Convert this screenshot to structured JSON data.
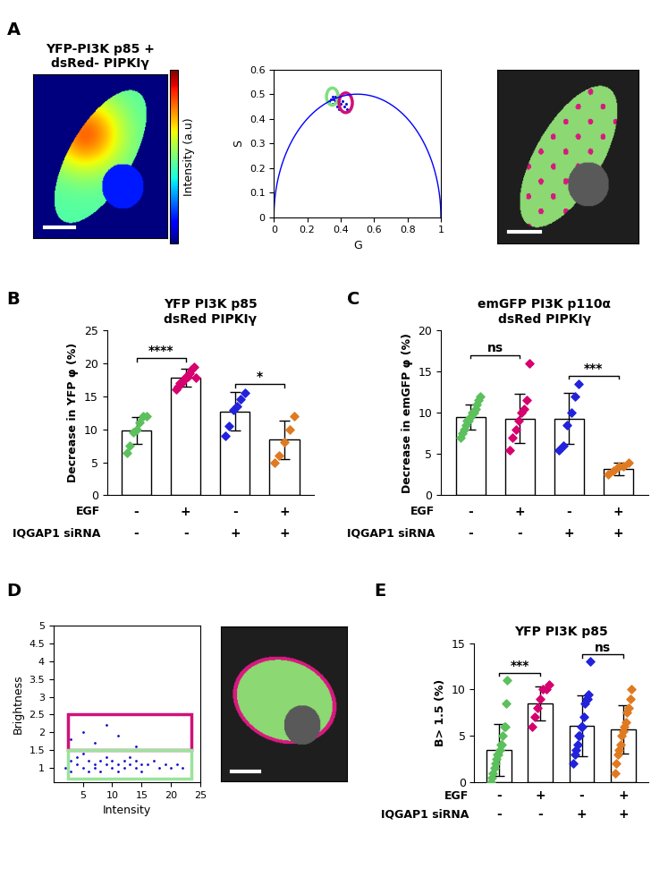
{
  "panel_labels": [
    "A",
    "B",
    "C",
    "D",
    "E"
  ],
  "chart_data": [
    {
      "type": "image",
      "panel": "A",
      "title": "YFP-PI3K p85 +\ndsRed- PIPKIγ",
      "colorbar_label": "Intensity (a.u)",
      "tick_labels": false
    },
    {
      "type": "scatter",
      "panel": "A",
      "x_label": "G",
      "y_label": "S",
      "xlim": [
        0,
        1
      ],
      "ylim": [
        0,
        0.6
      ],
      "xticks": [
        0,
        0.2,
        0.4,
        0.6,
        0.8,
        1
      ],
      "yticks": [
        0,
        0.1,
        0.2,
        0.3,
        0.4,
        0.5,
        0.6
      ],
      "x": [
        0.33,
        0.34,
        0.35,
        0.36,
        0.36,
        0.37,
        0.38,
        0.38,
        0.39,
        0.4,
        0.41,
        0.42,
        0.43,
        0.44,
        0.45,
        0.37,
        0.35,
        0.39
      ],
      "y": [
        0.47,
        0.48,
        0.49,
        0.48,
        0.46,
        0.47,
        0.48,
        0.45,
        0.47,
        0.46,
        0.47,
        0.45,
        0.46,
        0.44,
        0.43,
        0.49,
        0.46,
        0.44
      ],
      "color": "#1010d0",
      "marker": "dot",
      "cursors": [
        {
          "color": "#7ee07e",
          "center": [
            0.35,
            0.49
          ],
          "radius": 0.035
        },
        {
          "color": "#d0107a",
          "center": [
            0.43,
            0.465
          ],
          "radius": 0.04
        }
      ]
    },
    {
      "type": "image",
      "panel": "A",
      "tick_labels": false
    },
    {
      "type": "bar",
      "panel": "B",
      "title": "YFP PI3K p85\ndsRed PIPKIγ",
      "y_label": "Decrease in YFP φ (%)",
      "values": [
        9.8,
        17.8,
        12.7,
        8.4
      ],
      "errors": [
        2.0,
        1.4,
        2.9,
        2.9
      ],
      "points": [
        [
          6.5,
          7.5,
          9.5,
          10,
          11,
          12,
          12
        ],
        [
          16,
          16.5,
          17,
          17,
          17.5,
          18,
          18,
          18.5,
          19,
          19.5,
          17.8
        ],
        [
          9,
          10.5,
          13,
          13.5,
          14.5,
          15.5
        ],
        [
          5,
          6,
          8,
          10,
          12
        ]
      ],
      "colors": [
        "#5cc05c",
        "#d6006e",
        "#2222dd",
        "#e07a20"
      ],
      "marker": "diamond",
      "ylim": [
        0,
        25
      ],
      "yticks": [
        0,
        5,
        10,
        15,
        20,
        25
      ],
      "tick_labels": "y",
      "conditions": [
        {
          "name": "EGF",
          "values": [
            "-",
            "+",
            "-",
            "+"
          ]
        },
        {
          "name": "IQGAP1 siRNA",
          "values": [
            "-",
            "-",
            "+",
            "+"
          ]
        }
      ],
      "significance": [
        {
          "pair": [
            0,
            1
          ],
          "label": "****"
        },
        {
          "pair": [
            2,
            3
          ],
          "label": "*"
        }
      ]
    },
    {
      "type": "bar",
      "panel": "C",
      "title": "emGFP PI3K p110α\ndsRed PIPKIγ",
      "y_label": "Decrease in emGFP φ (%)",
      "values": [
        9.5,
        9.3,
        9.3,
        3.2
      ],
      "errors": [
        1.5,
        3.0,
        3.1,
        0.8
      ],
      "points": [
        [
          7,
          7.5,
          8,
          8.5,
          9,
          9,
          9.5,
          10,
          10,
          10.5,
          11,
          11.5,
          12
        ],
        [
          5.5,
          7,
          8,
          9,
          10,
          10.5,
          11.5,
          16
        ],
        [
          5.5,
          6,
          8.5,
          10,
          12,
          13.5
        ],
        [
          2.5,
          3,
          3.5,
          3.5,
          4
        ]
      ],
      "colors": [
        "#5cc05c",
        "#d6006e",
        "#2222dd",
        "#e07a20"
      ],
      "marker": "diamond",
      "ylim": [
        0,
        20
      ],
      "yticks": [
        0,
        5,
        10,
        15,
        20
      ],
      "tick_labels": "y",
      "conditions": [
        {
          "name": "EGF",
          "values": [
            "-",
            "+",
            "-",
            "+"
          ]
        },
        {
          "name": "IQGAP1 siRNA",
          "values": [
            "-",
            "-",
            "+",
            "+"
          ]
        }
      ],
      "significance": [
        {
          "pair": [
            0,
            1
          ],
          "label": "ns"
        },
        {
          "pair": [
            2,
            3
          ],
          "label": "***"
        }
      ]
    },
    {
      "type": "scatter",
      "panel": "D",
      "x_label": "Intensity",
      "y_label": "Brightness",
      "xlim": [
        0,
        25
      ],
      "ylim": [
        0.6,
        5
      ],
      "xticks": [
        5,
        10,
        15,
        20,
        25
      ],
      "yticks": [
        1,
        1.5,
        2,
        2.5,
        3,
        3.5,
        4,
        4.5,
        5
      ],
      "x": [
        2,
        3,
        3,
        4,
        4,
        5,
        5,
        6,
        6,
        7,
        7,
        8,
        8,
        9,
        9,
        10,
        10,
        11,
        11,
        12,
        12,
        13,
        13,
        14,
        14,
        15,
        15,
        16,
        17,
        18,
        19,
        20,
        21,
        22,
        3,
        5,
        7,
        9,
        11,
        14
      ],
      "y": [
        1.0,
        1.2,
        0.9,
        1.1,
        1.3,
        1.0,
        1.4,
        0.9,
        1.2,
        1.1,
        1.0,
        1.2,
        0.9,
        1.1,
        1.3,
        1.0,
        1.2,
        1.1,
        0.9,
        1.2,
        1.0,
        1.1,
        1.3,
        1.0,
        1.2,
        1.1,
        0.9,
        1.1,
        1.2,
        1.0,
        1.1,
        1.0,
        1.1,
        1.0,
        1.8,
        2.0,
        1.7,
        2.2,
        1.9,
        1.6
      ],
      "color": "#1010d0",
      "marker": "dot",
      "gates": [
        {
          "color": "#d0107a",
          "x": [
            2.5,
            23.5
          ],
          "y": [
            1.5,
            2.5
          ]
        },
        {
          "color": "#9be39b",
          "x": [
            2.5,
            23.5
          ],
          "y": [
            0.7,
            1.5
          ]
        }
      ]
    },
    {
      "type": "image",
      "panel": "D",
      "tick_labels": false
    },
    {
      "type": "bar",
      "panel": "E",
      "title": "YFP PI3K p85",
      "y_label": "B> 1.5 (%)",
      "values": [
        3.5,
        8.5,
        6.1,
        5.7
      ],
      "errors": [
        2.8,
        1.8,
        3.3,
        2.6
      ],
      "points": [
        [
          0,
          0.5,
          1,
          1.5,
          2,
          2.5,
          3,
          3,
          3.5,
          4,
          4,
          5,
          6,
          6,
          8.5,
          11
        ],
        [
          6,
          7,
          8,
          9,
          10,
          10,
          10.5
        ],
        [
          2,
          3,
          3.5,
          4,
          5,
          5,
          6,
          6,
          7,
          8.5,
          9,
          9,
          9.5,
          13
        ],
        [
          1,
          2,
          3,
          3.5,
          4,
          5,
          5.5,
          6,
          6.5,
          7.5,
          8,
          9,
          10
        ]
      ],
      "colors": [
        "#5cc05c",
        "#d6006e",
        "#2222dd",
        "#e07a20"
      ],
      "marker": "diamond",
      "ylim": [
        0,
        15
      ],
      "yticks": [
        0,
        5,
        10,
        15
      ],
      "tick_labels": "y",
      "conditions": [
        {
          "name": "EGF",
          "values": [
            "-",
            "+",
            "-",
            "+"
          ]
        },
        {
          "name": "IQGAP1 siRNA",
          "values": [
            "-",
            "-",
            "+",
            "+"
          ]
        }
      ],
      "significance": [
        {
          "pair": [
            0,
            1
          ],
          "label": "***"
        },
        {
          "pair": [
            2,
            3
          ],
          "label": "ns"
        }
      ]
    }
  ]
}
